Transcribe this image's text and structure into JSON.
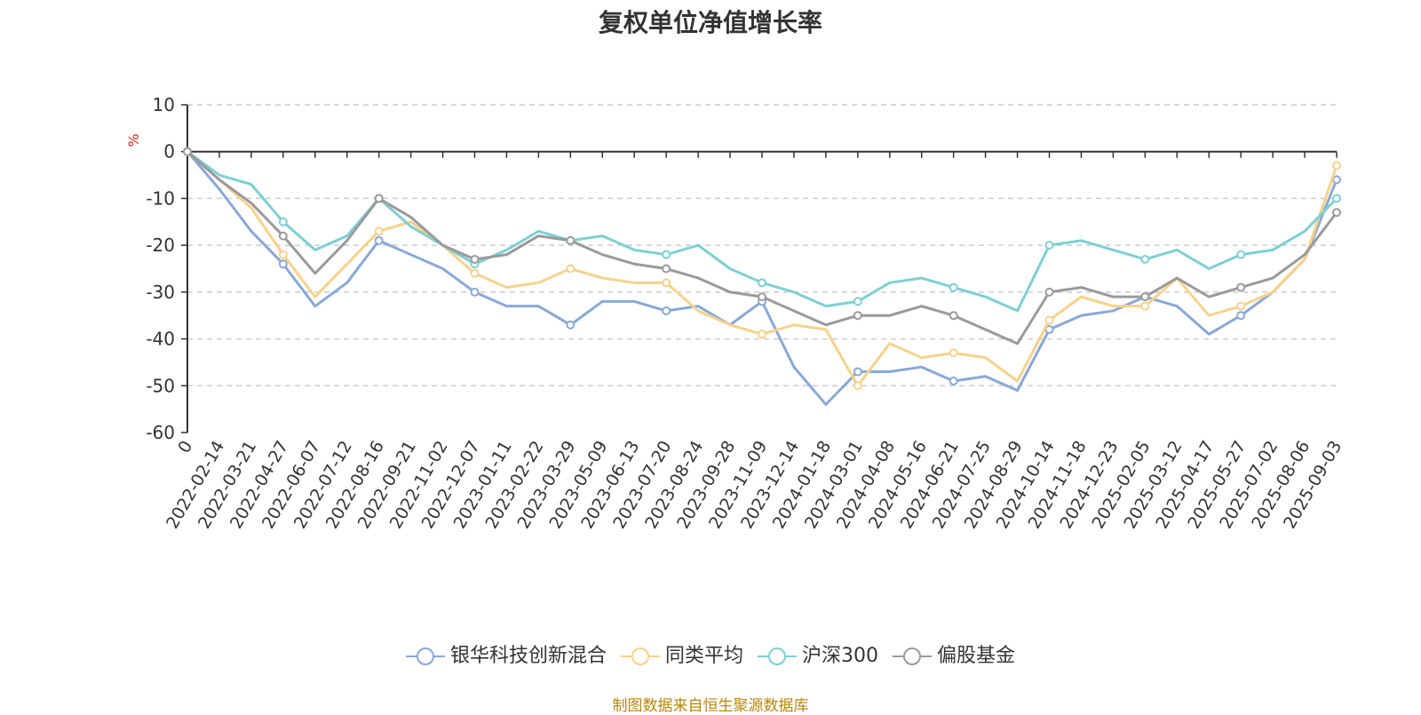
{
  "chart_data": {
    "type": "line",
    "title": "复权单位净值增长率",
    "ylabel": "%",
    "ylim": [
      -60,
      10
    ],
    "yticks": [
      10,
      0,
      -10,
      -20,
      -30,
      -40,
      -50,
      -60
    ],
    "x_tick_labels": [
      "0",
      "2022-02-14",
      "2022-03-21",
      "2022-04-27",
      "2022-06-07",
      "2022-07-12",
      "2022-08-16",
      "2022-09-21",
      "2022-11-02",
      "2022-12-07",
      "2023-01-11",
      "2023-02-22",
      "2023-03-29",
      "2023-05-09",
      "2023-06-13",
      "2023-07-20",
      "2023-08-24",
      "2023-09-28",
      "2023-11-09",
      "2023-12-14",
      "2024-01-18",
      "2024-03-01",
      "2024-04-08",
      "2024-05-16",
      "2024-06-21",
      "2024-07-25",
      "2024-08-29",
      "2024-10-14",
      "2024-11-18",
      "2024-12-23",
      "2025-02-05",
      "2025-03-12",
      "2025-04-17",
      "2025-05-27",
      "2025-07-02",
      "2025-08-06",
      "2025-09-03"
    ],
    "grid": true,
    "legend_position": "bottom",
    "series": [
      {
        "name": "银华科技创新混合",
        "color": "#8aa8d6",
        "values": [
          0,
          -8,
          -17,
          -24,
          -33,
          -28,
          -19,
          -22,
          -25,
          -30,
          -33,
          -33,
          -37,
          -32,
          -32,
          -34,
          -33,
          -37,
          -32,
          -46,
          -54,
          -47,
          -47,
          -46,
          -49,
          -48,
          -51,
          -38,
          -35,
          -34,
          -31,
          -33,
          -39,
          -35,
          -30,
          -23,
          -6
        ]
      },
      {
        "name": "同类平均",
        "color": "#f6d28c",
        "values": [
          0,
          -6,
          -12,
          -22,
          -31,
          -24,
          -17,
          -15,
          -20,
          -26,
          -29,
          -28,
          -25,
          -27,
          -28,
          -28,
          -34,
          -37,
          -39,
          -37,
          -38,
          -50,
          -41,
          -44,
          -43,
          -44,
          -49,
          -36,
          -31,
          -33,
          -33,
          -27,
          -35,
          -33,
          -30,
          -23,
          -3
        ]
      },
      {
        "name": "沪深300",
        "color": "#7ecfd2",
        "values": [
          0,
          -5,
          -7,
          -15,
          -21,
          -18,
          -10,
          -16,
          -20,
          -24,
          -21,
          -17,
          -19,
          -18,
          -21,
          -22,
          -20,
          -25,
          -28,
          -30,
          -33,
          -32,
          -28,
          -27,
          -29,
          -31,
          -34,
          -20,
          -19,
          -21,
          -23,
          -21,
          -25,
          -22,
          -21,
          -17,
          -10
        ]
      },
      {
        "name": "偏股基金",
        "color": "#9a9a9a",
        "values": [
          0,
          -6,
          -11,
          -18,
          -26,
          -19,
          -10,
          -14,
          -20,
          -23,
          -22,
          -18,
          -19,
          -22,
          -24,
          -25,
          -27,
          -30,
          -31,
          -34,
          -37,
          -35,
          -35,
          -33,
          -35,
          -38,
          -41,
          -30,
          -29,
          -31,
          -31,
          -27,
          -31,
          -29,
          -27,
          -22,
          -13
        ]
      }
    ]
  },
  "footer": {
    "source": "制图数据来自恒生聚源数据库"
  }
}
